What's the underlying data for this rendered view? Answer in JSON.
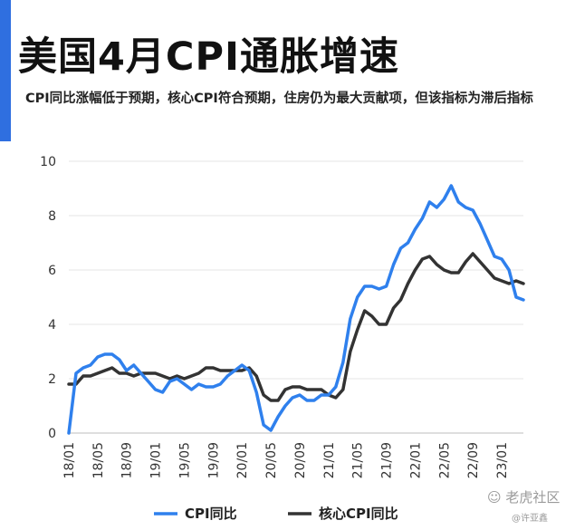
{
  "title": "美国4月CPI通胀增速",
  "subtitle": "CPI同比涨幅低于预期，核心CPI符合预期，住房仍为最大贡献项，但该指标为滞后指标",
  "watermark": {
    "logo_text": "老虎社区",
    "author": "@许亚鑫"
  },
  "colors": {
    "accent": "#2f6fe0",
    "cpi": "#2f80ed",
    "core_cpi": "#333333",
    "grid": "#e6e6e6"
  },
  "chart_data": {
    "type": "line",
    "title": "",
    "xlabel": "",
    "ylabel": "",
    "ylim": [
      0,
      10
    ],
    "yticks": [
      0,
      2,
      4,
      6,
      8,
      10
    ],
    "grid": "horizontal",
    "legend_position": "bottom",
    "x": [
      "18/01",
      "18/02",
      "18/03",
      "18/04",
      "18/05",
      "18/06",
      "18/07",
      "18/08",
      "18/09",
      "18/10",
      "18/11",
      "18/12",
      "19/01",
      "19/02",
      "19/03",
      "19/04",
      "19/05",
      "19/06",
      "19/07",
      "19/08",
      "19/09",
      "19/10",
      "19/11",
      "19/12",
      "20/01",
      "20/02",
      "20/03",
      "20/04",
      "20/05",
      "20/06",
      "20/07",
      "20/08",
      "20/09",
      "20/10",
      "20/11",
      "20/12",
      "21/01",
      "21/02",
      "21/03",
      "21/04",
      "21/05",
      "21/06",
      "21/07",
      "21/08",
      "21/09",
      "21/10",
      "21/11",
      "21/12",
      "22/01",
      "22/02",
      "22/03",
      "22/04",
      "22/05",
      "22/06",
      "22/07",
      "22/08",
      "22/09",
      "22/10",
      "22/11",
      "22/12",
      "23/01",
      "23/02",
      "23/03",
      "23/04"
    ],
    "x_tick_labels": [
      "18/01",
      "18/05",
      "18/09",
      "19/01",
      "19/05",
      "19/09",
      "20/01",
      "20/05",
      "20/09",
      "21/01",
      "21/05",
      "21/09",
      "22/01",
      "22/05",
      "22/09",
      "23/01"
    ],
    "series": [
      {
        "name": "CPI同比",
        "color": "#2f80ed",
        "values": [
          0.0,
          2.2,
          2.4,
          2.5,
          2.8,
          2.9,
          2.9,
          2.7,
          2.3,
          2.5,
          2.2,
          1.9,
          1.6,
          1.5,
          1.9,
          2.0,
          1.8,
          1.6,
          1.8,
          1.7,
          1.7,
          1.8,
          2.1,
          2.3,
          2.5,
          2.3,
          1.5,
          0.3,
          0.1,
          0.6,
          1.0,
          1.3,
          1.4,
          1.2,
          1.2,
          1.4,
          1.4,
          1.7,
          2.6,
          4.2,
          5.0,
          5.4,
          5.4,
          5.3,
          5.4,
          6.2,
          6.8,
          7.0,
          7.5,
          7.9,
          8.5,
          8.3,
          8.6,
          9.1,
          8.5,
          8.3,
          8.2,
          7.7,
          7.1,
          6.5,
          6.4,
          6.0,
          5.0,
          4.9
        ]
      },
      {
        "name": "核心CPI同比",
        "color": "#333333",
        "values": [
          1.8,
          1.8,
          2.1,
          2.1,
          2.2,
          2.3,
          2.4,
          2.2,
          2.2,
          2.1,
          2.2,
          2.2,
          2.2,
          2.1,
          2.0,
          2.1,
          2.0,
          2.1,
          2.2,
          2.4,
          2.4,
          2.3,
          2.3,
          2.3,
          2.3,
          2.4,
          2.1,
          1.4,
          1.2,
          1.2,
          1.6,
          1.7,
          1.7,
          1.6,
          1.6,
          1.6,
          1.4,
          1.3,
          1.6,
          3.0,
          3.8,
          4.5,
          4.3,
          4.0,
          4.0,
          4.6,
          4.9,
          5.5,
          6.0,
          6.4,
          6.5,
          6.2,
          6.0,
          5.9,
          5.9,
          6.3,
          6.6,
          6.3,
          6.0,
          5.7,
          5.6,
          5.5,
          5.6,
          5.5
        ]
      }
    ]
  }
}
